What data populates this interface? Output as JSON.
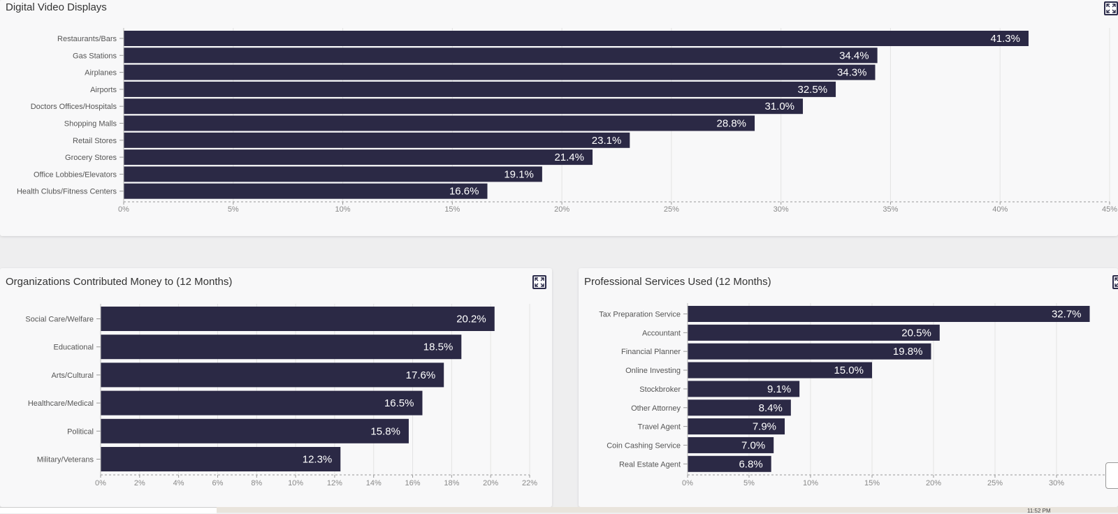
{
  "colors": {
    "bar": "#2b2945",
    "bar_label": "#ffffff",
    "axis_text": "#888888",
    "category_text": "#555555",
    "grid": "#e3e3e3"
  },
  "panels": {
    "top": {
      "title": "Digital Video Displays"
    },
    "bottom_left": {
      "title": "Organizations Contributed Money to (12 Months)"
    },
    "bottom_right": {
      "title": "Professional Services Used (12 Months)"
    }
  },
  "expand_icon": "expand-icon",
  "taskbar": {
    "clock": "11:52 PM"
  },
  "chart_data": [
    {
      "type": "bar",
      "orientation": "horizontal",
      "title": "Digital Video Displays",
      "categories": [
        "Restaurants/Bars",
        "Gas Stations",
        "Airplanes",
        "Airports",
        "Doctors Offices/Hospitals",
        "Shopping Malls",
        "Retail Stores",
        "Grocery Stores",
        "Office Lobbies/Elevators",
        "Health Clubs/Fitness Centers"
      ],
      "values": [
        41.3,
        34.4,
        34.3,
        32.5,
        31.0,
        28.8,
        23.1,
        21.4,
        19.1,
        16.6
      ],
      "value_labels": [
        "41.3%",
        "34.4%",
        "34.3%",
        "32.5%",
        "31.0%",
        "28.8%",
        "23.1%",
        "21.4%",
        "19.1%",
        "16.6%"
      ],
      "xlim": [
        0,
        45
      ],
      "x_ticks": [
        0,
        5,
        10,
        15,
        20,
        25,
        30,
        35,
        40,
        45
      ],
      "x_tick_labels": [
        "0%",
        "5%",
        "10%",
        "15%",
        "20%",
        "25%",
        "30%",
        "35%",
        "40%",
        "45%"
      ],
      "grid": true
    },
    {
      "type": "bar",
      "orientation": "horizontal",
      "title": "Organizations Contributed Money to (12 Months)",
      "categories": [
        "Social Care/Welfare",
        "Educational",
        "Arts/Cultural",
        "Healthcare/Medical",
        "Political",
        "Military/Veterans"
      ],
      "values": [
        20.2,
        18.5,
        17.6,
        16.5,
        15.8,
        12.3
      ],
      "value_labels": [
        "20.2%",
        "18.5%",
        "17.6%",
        "16.5%",
        "15.8%",
        "12.3%"
      ],
      "xlim": [
        0,
        22
      ],
      "x_ticks": [
        0,
        2,
        4,
        6,
        8,
        10,
        12,
        14,
        16,
        18,
        20,
        22
      ],
      "x_tick_labels": [
        "0%",
        "2%",
        "4%",
        "6%",
        "8%",
        "10%",
        "12%",
        "14%",
        "16%",
        "18%",
        "20%",
        "22%"
      ],
      "grid": true
    },
    {
      "type": "bar",
      "orientation": "horizontal",
      "title": "Professional Services Used (12 Months)",
      "categories": [
        "Tax Preparation Service",
        "Accountant",
        "Financial Planner",
        "Online Investing",
        "Stockbroker",
        "Other Attorney",
        "Travel Agent",
        "Coin Cashing Service",
        "Real Estate Agent"
      ],
      "values": [
        32.7,
        20.5,
        19.8,
        15.0,
        9.1,
        8.4,
        7.9,
        7.0,
        6.8
      ],
      "value_labels": [
        "32.7%",
        "20.5%",
        "19.8%",
        "15.0%",
        "9.1%",
        "8.4%",
        "7.9%",
        "7.0%",
        "6.8%"
      ],
      "xlim": [
        0,
        35
      ],
      "x_ticks": [
        0,
        5,
        10,
        15,
        20,
        25,
        30
      ],
      "x_tick_labels": [
        "0%",
        "5%",
        "10%",
        "15%",
        "20%",
        "25%",
        "30%"
      ],
      "grid": true
    }
  ]
}
